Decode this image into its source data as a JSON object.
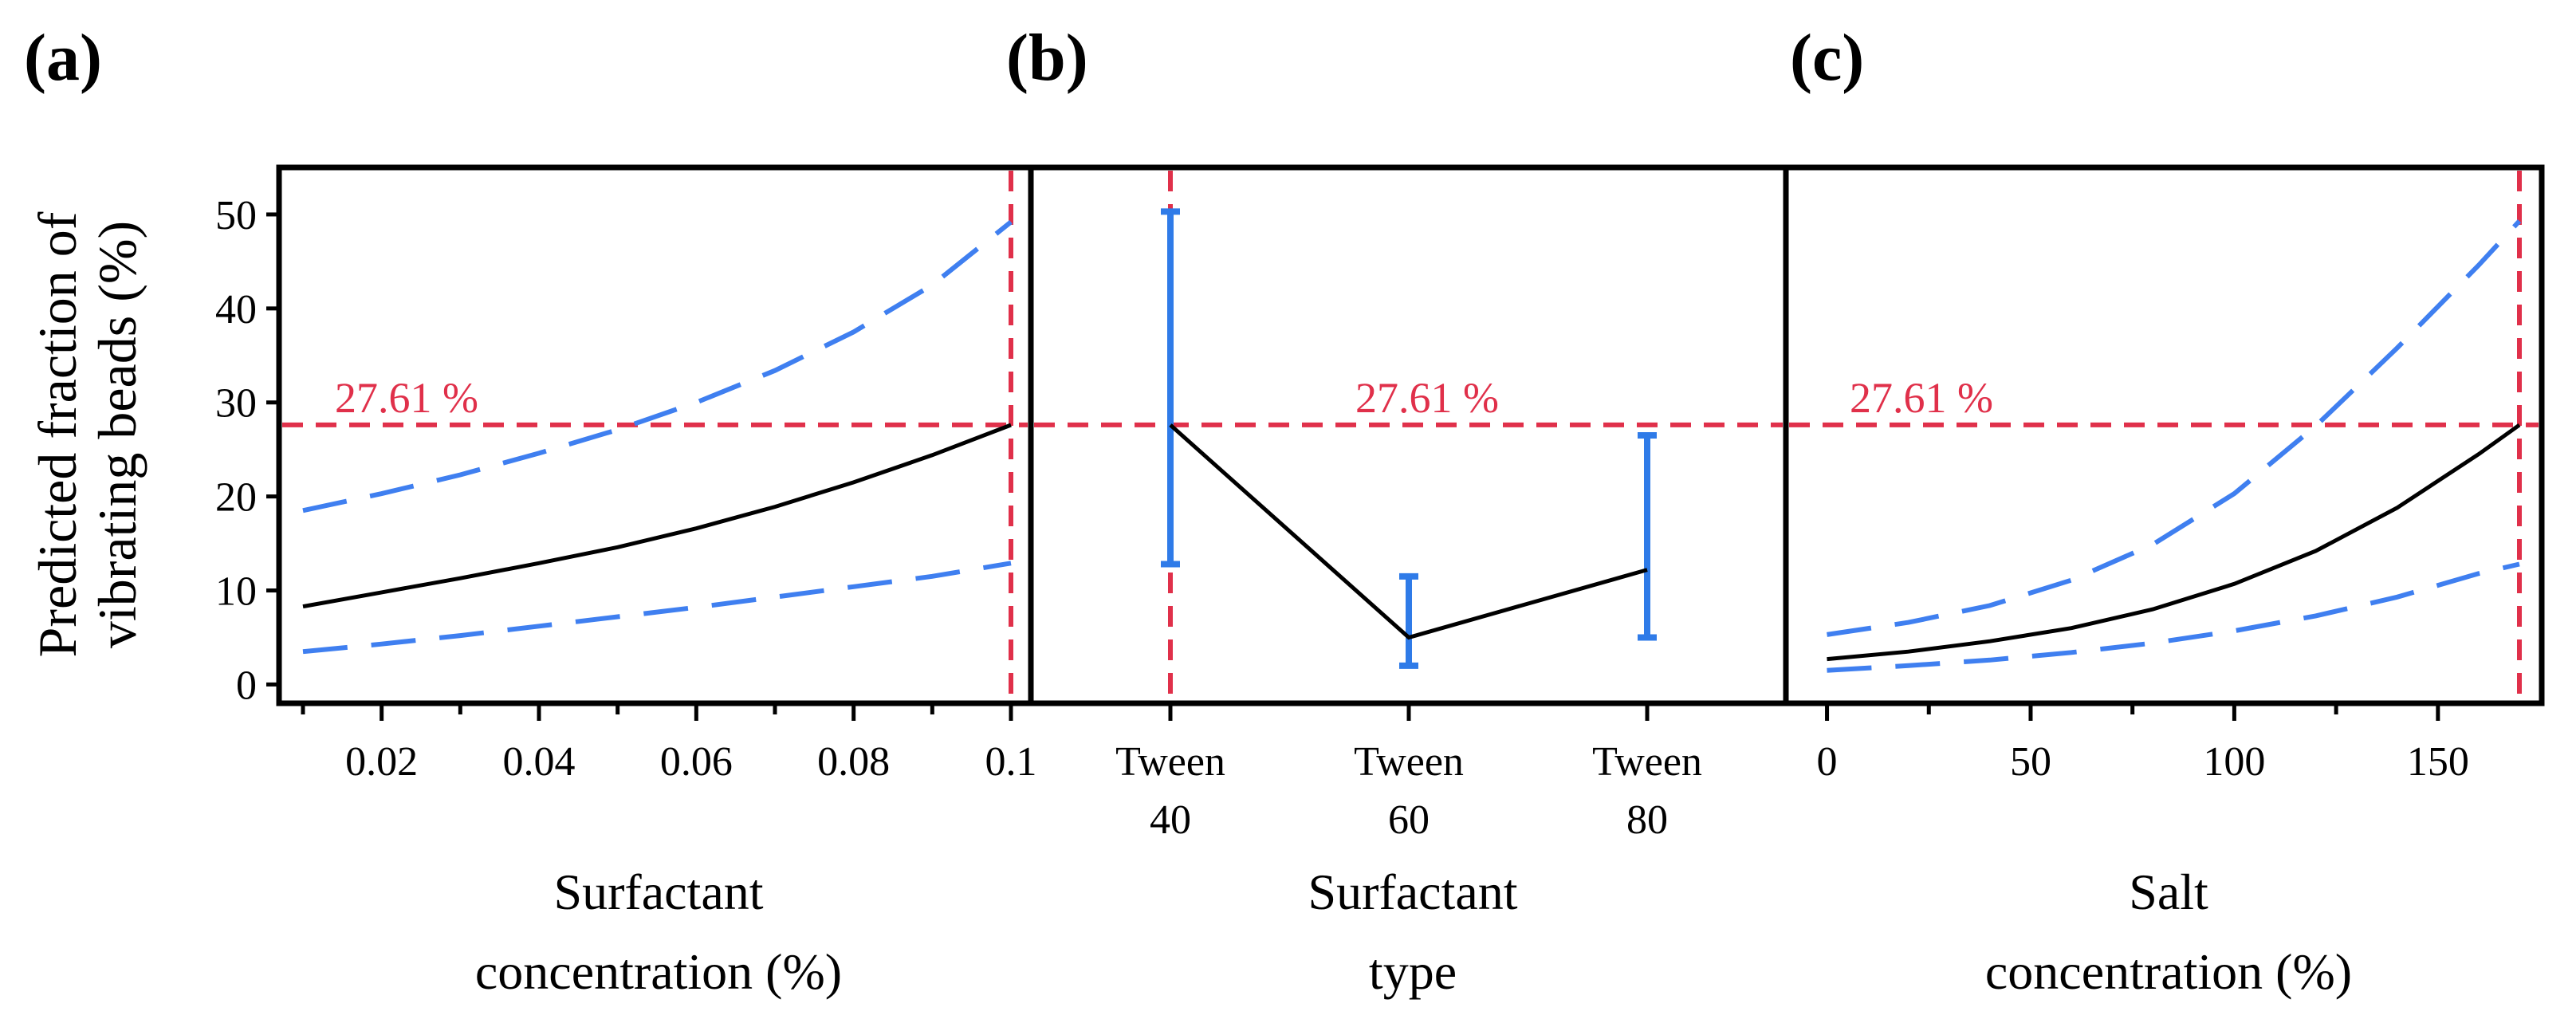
{
  "colors": {
    "fit": "#000000",
    "ci": "#3f7ff0",
    "errorbar": "#2f7be8",
    "reference": "#e0304a",
    "frame": "#000000"
  },
  "panel_labels": [
    "(a)",
    "(b)",
    "(c)"
  ],
  "chart_data": [
    {
      "panel": "(a)",
      "type": "line",
      "title": "",
      "xlabel": [
        "Surfactant",
        "concentration (%)"
      ],
      "ylabel": [
        "Predicted fraction of",
        "vibrating beads (%)"
      ],
      "xlim": [
        0.01,
        0.1
      ],
      "ylim": [
        -2,
        55
      ],
      "xticks": [
        0.02,
        0.04,
        0.06,
        0.08,
        0.1
      ],
      "xtick_labels": [
        "0.02",
        "0.04",
        "0.06",
        "0.08",
        "0.1"
      ],
      "yticks": [
        0,
        10,
        20,
        30,
        40,
        50
      ],
      "ytick_labels": [
        "0",
        "10",
        "20",
        "30",
        "40",
        "50"
      ],
      "series": [
        {
          "name": "prediction",
          "style": "solid",
          "x": [
            0.01,
            0.02,
            0.03,
            0.04,
            0.05,
            0.06,
            0.07,
            0.08,
            0.09,
            0.1
          ],
          "y": [
            8.3,
            9.8,
            11.3,
            12.9,
            14.6,
            16.6,
            18.9,
            21.5,
            24.4,
            27.6
          ]
        },
        {
          "name": "upper CI",
          "style": "dashed",
          "x": [
            0.01,
            0.02,
            0.03,
            0.04,
            0.05,
            0.06,
            0.07,
            0.08,
            0.09,
            0.1
          ],
          "y": [
            18.5,
            20.3,
            22.3,
            24.6,
            27.1,
            30.0,
            33.4,
            37.5,
            42.5,
            49.2
          ]
        },
        {
          "name": "lower CI",
          "style": "dashed",
          "x": [
            0.01,
            0.02,
            0.03,
            0.04,
            0.05,
            0.06,
            0.07,
            0.08,
            0.09,
            0.1
          ],
          "y": [
            3.5,
            4.3,
            5.2,
            6.2,
            7.2,
            8.2,
            9.3,
            10.4,
            11.5,
            12.9
          ]
        }
      ],
      "reference": {
        "y": 27.61,
        "x": 0.1,
        "label": "27.61 %"
      }
    },
    {
      "panel": "(b)",
      "type": "line",
      "title": "",
      "xlabel": [
        "Surfactant",
        "type"
      ],
      "ylim": [
        -2,
        55
      ],
      "categories": [
        [
          "Tween",
          "40"
        ],
        [
          "Tween",
          "60"
        ],
        [
          "Tween",
          "80"
        ]
      ],
      "series": [
        {
          "name": "prediction",
          "style": "solid",
          "values": [
            27.6,
            5.0,
            12.2
          ]
        }
      ],
      "error_bars": [
        {
          "low": 12.8,
          "high": 50.3
        },
        {
          "low": 2.0,
          "high": 11.5
        },
        {
          "low": 5.0,
          "high": 26.5
        }
      ],
      "reference": {
        "y": 27.61,
        "category_index": 0,
        "label": "27.61 %"
      }
    },
    {
      "panel": "(c)",
      "type": "line",
      "title": "",
      "xlabel": [
        "Salt",
        "concentration (%)"
      ],
      "xlim": [
        -5,
        170
      ],
      "ylim": [
        -2,
        55
      ],
      "xticks": [
        0,
        50,
        100,
        150
      ],
      "xtick_labels": [
        "0",
        "50",
        "100",
        "150"
      ],
      "series": [
        {
          "name": "prediction",
          "style": "solid",
          "x": [
            0,
            20,
            40,
            60,
            80,
            100,
            120,
            140,
            160,
            170
          ],
          "y": [
            2.7,
            3.5,
            4.6,
            6.0,
            8.0,
            10.7,
            14.2,
            18.8,
            24.5,
            27.6
          ]
        },
        {
          "name": "upper CI",
          "style": "dashed",
          "x": [
            0,
            20,
            40,
            60,
            80,
            100,
            120,
            140,
            160,
            170
          ],
          "y": [
            5.3,
            6.6,
            8.4,
            11.1,
            14.9,
            20.3,
            27.5,
            35.8,
            44.6,
            49.3
          ]
        },
        {
          "name": "lower CI",
          "style": "dashed",
          "x": [
            0,
            20,
            40,
            60,
            80,
            100,
            120,
            140,
            160,
            170
          ],
          "y": [
            1.5,
            2.0,
            2.6,
            3.4,
            4.4,
            5.7,
            7.3,
            9.3,
            11.8,
            12.8
          ]
        }
      ],
      "reference": {
        "y": 27.61,
        "x": 170,
        "label": "27.61 %"
      }
    }
  ]
}
